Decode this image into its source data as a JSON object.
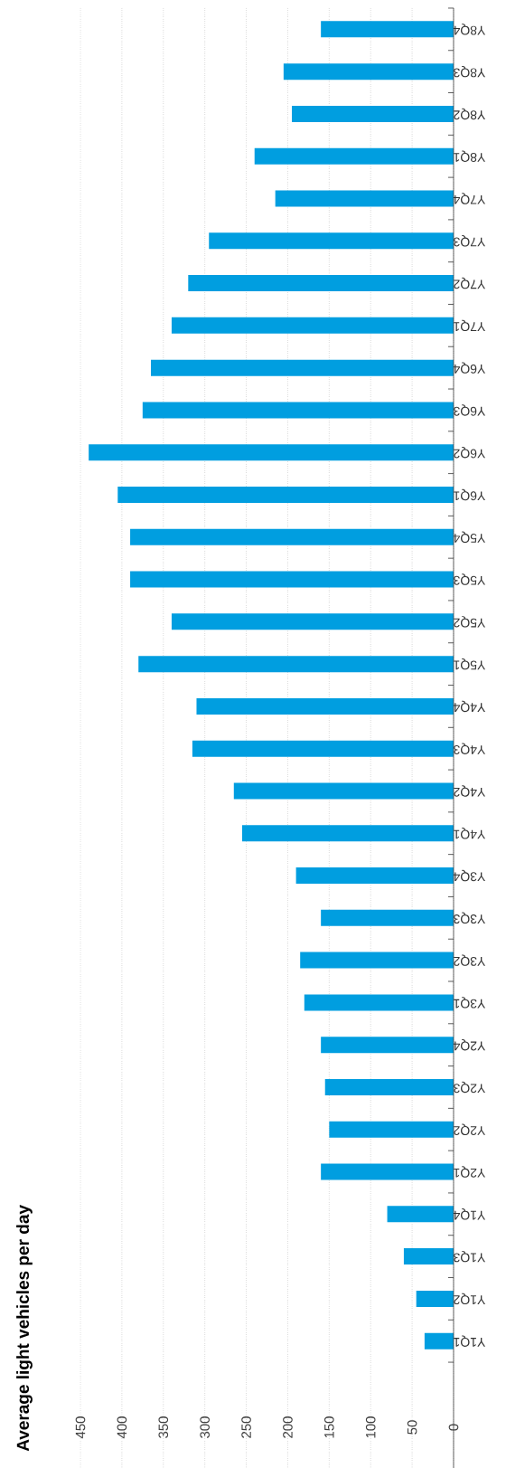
{
  "chart_data": {
    "type": "bar",
    "orientation": "horizontal",
    "title": "Average light vehicles per day",
    "categories": [
      "Y8Q4",
      "Y8Q3",
      "Y8Q2",
      "Y8Q1",
      "Y7Q4",
      "Y7Q3",
      "Y7Q2",
      "Y7Q1",
      "Y6Q4",
      "Y6Q3",
      "Y6Q2",
      "Y6Q1",
      "Y5Q4",
      "Y5Q3",
      "Y5Q2",
      "Y5Q1",
      "Y4Q4",
      "Y4Q3",
      "Y4Q2",
      "Y4Q1",
      "Y3Q4",
      "Y3Q3",
      "Y3Q2",
      "Y3Q1",
      "Y2Q4",
      "Y2Q3",
      "Y2Q2",
      "Y2Q1",
      "Y1Q4",
      "Y1Q3",
      "Y1Q2",
      "Y1Q1"
    ],
    "values": [
      160,
      205,
      195,
      240,
      215,
      295,
      320,
      340,
      365,
      375,
      440,
      405,
      390,
      390,
      340,
      380,
      310,
      315,
      265,
      255,
      190,
      160,
      185,
      180,
      160,
      155,
      150,
      160,
      80,
      60,
      45,
      35
    ],
    "color": "#009ee0",
    "xlim": [
      450,
      0
    ],
    "xticks": [
      0,
      50,
      100,
      150,
      200,
      250,
      300,
      350,
      400,
      450
    ],
    "grid": "x"
  }
}
